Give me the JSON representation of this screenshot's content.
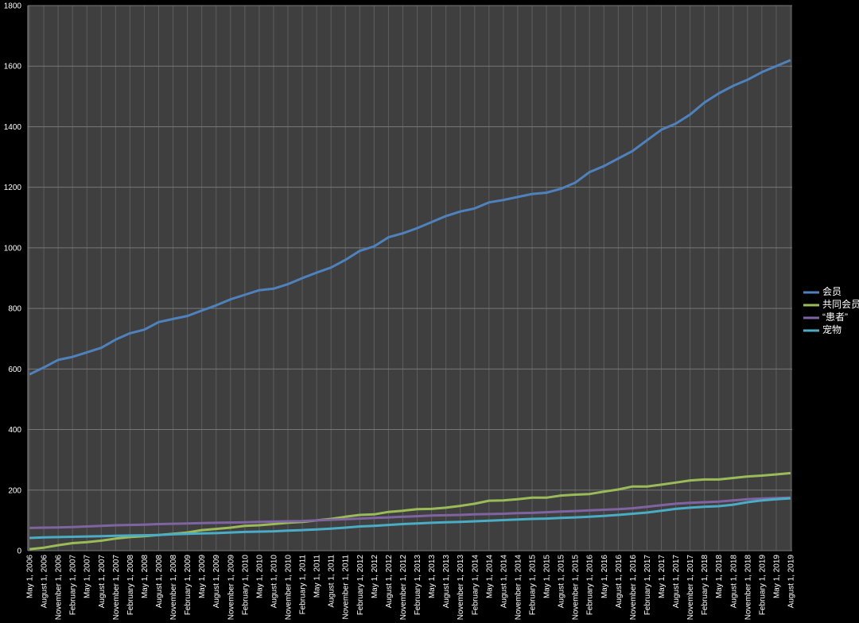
{
  "chart_data": {
    "type": "line",
    "categories": [
      "May 1, 2006",
      "August 1, 2006",
      "November 1, 2006",
      "February 1, 2007",
      "May 1, 2007",
      "August 1, 2007",
      "November 1, 2007",
      "February 1, 2008",
      "May 1, 2008",
      "August 1, 2008",
      "November 1, 2008",
      "February 1, 2009",
      "May 1, 2009",
      "August 1, 2009",
      "November 1, 2009",
      "February 1, 2010",
      "May 1, 2010",
      "August 1, 2010",
      "November 1, 2010",
      "February 1, 2011",
      "May 1, 2011",
      "August 1, 2011",
      "November 1, 2011",
      "February 1, 2012",
      "May 1, 2012",
      "August 1, 2012",
      "November 1, 2012",
      "February 1, 2013",
      "May 1, 2013",
      "August 1, 2013",
      "November 1, 2013",
      "February 1, 2014",
      "May 1, 2014",
      "August 1, 2014",
      "November 1, 2014",
      "February 1, 2015",
      "May 1, 2015",
      "August 1, 2015",
      "November 1, 2015",
      "February 1, 2016",
      "May 1, 2016",
      "August 1, 2016",
      "November 1, 2016",
      "February 1, 2017",
      "May 1, 2017",
      "August 1, 2017",
      "November 1, 2017",
      "February 1, 2018",
      "May 1, 2018",
      "August 1, 2018",
      "November 1, 2018",
      "February 1, 2019",
      "May 1, 2019",
      "August 1, 2019"
    ],
    "series": [
      {
        "name": "会员",
        "color": "#4f81bd",
        "values": [
          582,
          605,
          630,
          640,
          655,
          670,
          697,
          718,
          730,
          755,
          765,
          775,
          793,
          810,
          830,
          845,
          860,
          865,
          880,
          900,
          918,
          935,
          960,
          990,
          1005,
          1035,
          1048,
          1065,
          1085,
          1105,
          1120,
          1130,
          1150,
          1158,
          1168,
          1178,
          1182,
          1195,
          1215,
          1250,
          1270,
          1295,
          1320,
          1355,
          1390,
          1410,
          1440,
          1480,
          1510,
          1535,
          1555,
          1580,
          1600,
          1620
        ]
      },
      {
        "name": "共同会员",
        "color": "#9bbb59",
        "values": [
          5,
          10,
          18,
          25,
          28,
          33,
          40,
          45,
          48,
          52,
          56,
          60,
          68,
          72,
          76,
          82,
          84,
          88,
          92,
          95,
          100,
          105,
          112,
          118,
          120,
          128,
          132,
          137,
          138,
          142,
          148,
          155,
          165,
          166,
          170,
          175,
          175,
          182,
          185,
          187,
          195,
          202,
          212,
          212,
          218,
          225,
          232,
          235,
          235,
          240,
          245,
          248,
          252,
          256
        ]
      },
      {
        "name": "“患者”",
        "color": "#8064a2",
        "values": [
          75,
          76,
          77,
          78,
          80,
          82,
          84,
          85,
          86,
          88,
          89,
          90,
          91,
          92,
          93,
          94,
          95,
          96,
          97,
          98,
          100,
          102,
          104,
          106,
          108,
          110,
          112,
          114,
          116,
          117,
          118,
          120,
          121,
          122,
          124,
          125,
          127,
          129,
          131,
          133,
          135,
          137,
          140,
          145,
          150,
          155,
          158,
          160,
          162,
          166,
          170,
          172,
          174,
          175
        ]
      },
      {
        "name": "宠物",
        "color": "#4bacc6",
        "values": [
          42,
          44,
          45,
          46,
          47,
          48,
          49,
          50,
          51,
          52,
          54,
          56,
          57,
          58,
          60,
          62,
          63,
          64,
          66,
          68,
          70,
          73,
          76,
          80,
          82,
          85,
          88,
          90,
          92,
          94,
          95,
          97,
          99,
          101,
          103,
          105,
          106,
          108,
          110,
          112,
          115,
          118,
          122,
          126,
          132,
          138,
          142,
          145,
          147,
          152,
          160,
          166,
          170,
          173
        ]
      }
    ],
    "ylim": [
      0,
      1800
    ],
    "yticks": [
      0,
      200,
      400,
      600,
      800,
      1000,
      1200,
      1400,
      1600,
      1800
    ],
    "grid": true,
    "legend": "right"
  }
}
